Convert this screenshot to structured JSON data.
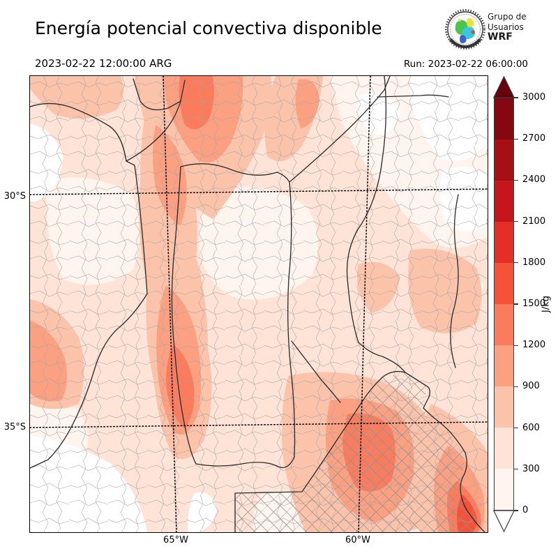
{
  "header": {
    "title": "Energía potencial convectiva disponible",
    "valid_time": "2023-02-22 12:00:00 ARG",
    "run_label": "Run: 2023-02-22 06:00:00",
    "logo": {
      "line1": "Grupo de",
      "line2": "Usuarios",
      "line3": "WRF"
    }
  },
  "map": {
    "x_ticks": [
      "65°W",
      "60°W"
    ],
    "y_ticks": [
      "30°S",
      "35°S"
    ],
    "variable": "CAPE (Energía potencial convectiva disponible)"
  },
  "colorbar": {
    "unit": "J/kg",
    "ticks": [
      0,
      300,
      600,
      900,
      1200,
      1500,
      1800,
      2100,
      2400,
      2700,
      3000
    ],
    "segment_colors_bottom_to_top": [
      "#fff4ee",
      "#fee3d6",
      "#fcc3ab",
      "#fca082",
      "#fb7c5c",
      "#f5523a",
      "#e32f27",
      "#c4161c",
      "#a50f15",
      "#840711"
    ],
    "over_color": "#67000d",
    "under_color": "#ffffff",
    "outline_color": "#3a3a3a"
  }
}
